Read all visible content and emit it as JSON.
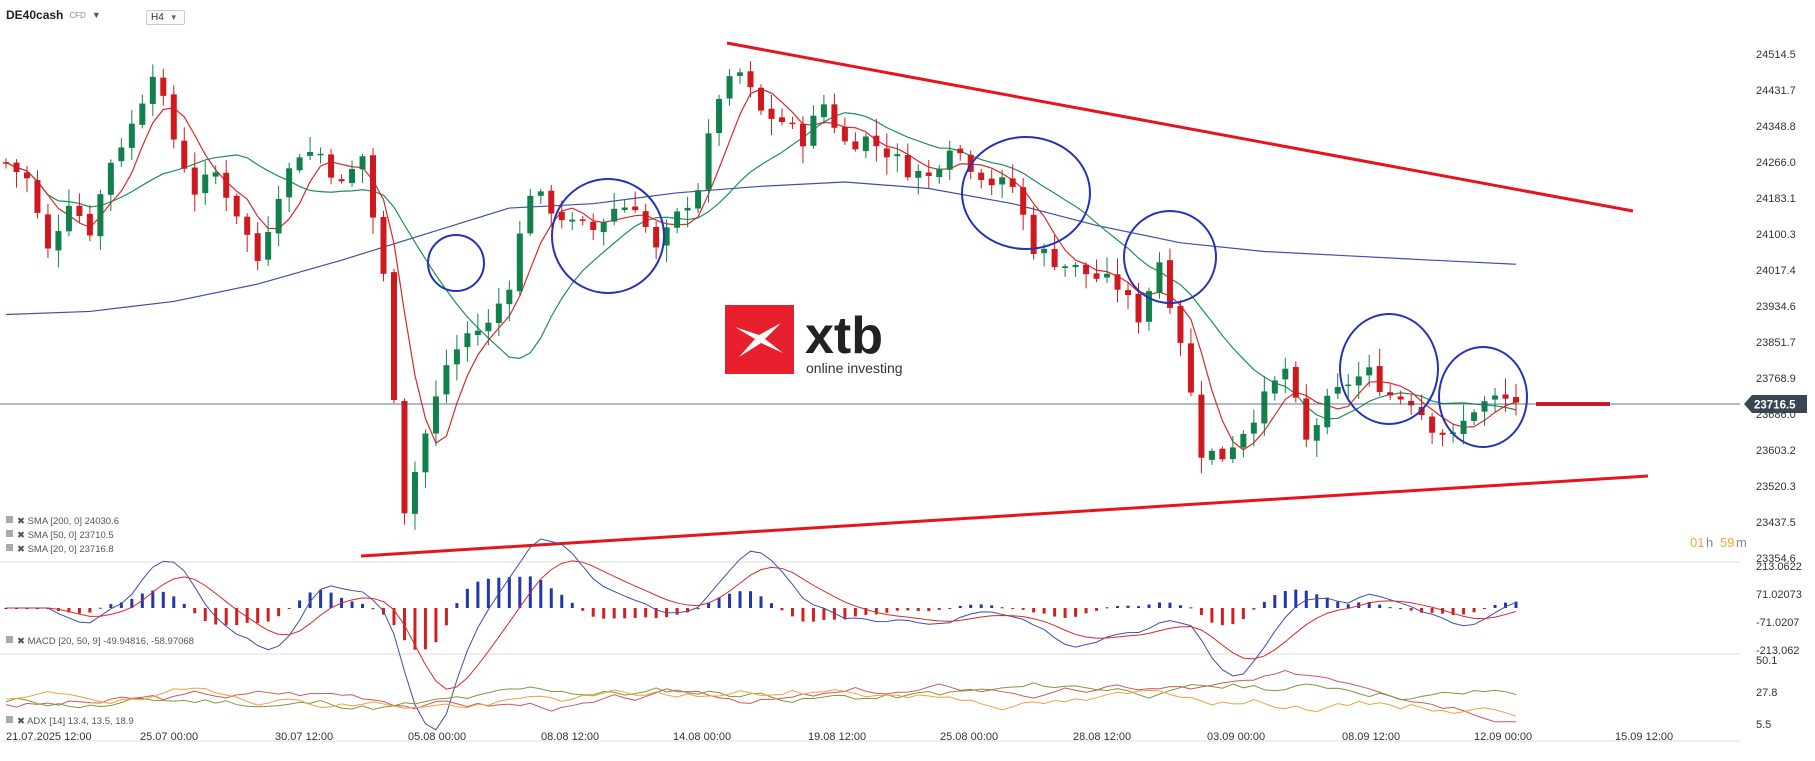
{
  "header": {
    "symbol": "DE40cash",
    "symbol_tag": "CFD",
    "timeframe": "H4"
  },
  "logo": {
    "brand": "xtb",
    "tagline": "online investing",
    "color": "#e8202d"
  },
  "countdown": {
    "hours": "01",
    "h_unit": "h",
    "minutes": "59",
    "m_unit": "m"
  },
  "colors": {
    "bull": "#12804a",
    "bear": "#d0181f",
    "sma200": "#3f4fa8",
    "sma50": "#1f8f5b",
    "sma20": "#d82a2a",
    "trendline": "#e8141b",
    "circles": "#2432b8",
    "macd_hist_pos": "#2336a8",
    "macd_hist_neg": "#d21f1f",
    "adx": "#d05a5a",
    "plus_di": "#7f9a3a",
    "minus_di": "#f0a040"
  },
  "chart_data": [
    {
      "type": "candlestick",
      "panel": "price",
      "symbol": "DE40cash",
      "timeframe": "H4",
      "y_ticks": [
        "24514.5",
        "24431.7",
        "24348.8",
        "24266.0",
        "24183.1",
        "24100.3",
        "24017.4",
        "23934.6",
        "23851.7",
        "23768.9",
        "23686.0",
        "23603.2",
        "23520.3",
        "23437.5",
        "23354.6"
      ],
      "ylim": [
        23354.6,
        24514.5
      ],
      "last_price": "23716.5",
      "x_ticks": [
        "21.07.2025  12:00",
        "25.07  00:00",
        "30.07  12:00",
        "05.08  00:00",
        "08.08  12:00",
        "14.08  00:00",
        "19.08  12:00",
        "25.08  00:00",
        "28.08  12:00",
        "03.09  00:00",
        "08.09  12:00",
        "12.09  00:00",
        "15.09  12:00"
      ],
      "close_path": [
        [
          0,
          24265
        ],
        [
          10,
          24225
        ],
        [
          20,
          24060
        ],
        [
          30,
          24180
        ],
        [
          40,
          24110
        ],
        [
          50,
          24270
        ],
        [
          60,
          24350
        ],
        [
          70,
          24480
        ],
        [
          80,
          24320
        ],
        [
          90,
          24200
        ],
        [
          100,
          24240
        ],
        [
          110,
          24150
        ],
        [
          120,
          24040
        ],
        [
          130,
          24200
        ],
        [
          140,
          24290
        ],
        [
          150,
          24285
        ],
        [
          160,
          24210
        ],
        [
          170,
          24280
        ],
        [
          180,
          24000
        ],
        [
          190,
          23470
        ],
        [
          200,
          23640
        ],
        [
          210,
          23800
        ],
        [
          220,
          23870
        ],
        [
          230,
          23890
        ],
        [
          240,
          23990
        ],
        [
          250,
          24200
        ],
        [
          260,
          24160
        ],
        [
          270,
          24120
        ],
        [
          280,
          24110
        ],
        [
          290,
          24160
        ],
        [
          300,
          24170
        ],
        [
          310,
          24060
        ],
        [
          320,
          24140
        ],
        [
          330,
          24210
        ],
        [
          340,
          24420
        ],
        [
          350,
          24470
        ],
        [
          360,
          24380
        ],
        [
          370,
          24360
        ],
        [
          380,
          24320
        ],
        [
          390,
          24400
        ],
        [
          400,
          24310
        ],
        [
          410,
          24320
        ],
        [
          420,
          24290
        ],
        [
          430,
          24250
        ],
        [
          440,
          24230
        ],
        [
          450,
          24310
        ],
        [
          460,
          24260
        ],
        [
          470,
          24220
        ],
        [
          480,
          24210
        ],
        [
          490,
          24070
        ],
        [
          500,
          24040
        ],
        [
          510,
          24020
        ],
        [
          520,
          24000
        ],
        [
          530,
          23980
        ],
        [
          540,
          23910
        ],
        [
          550,
          24040
        ],
        [
          560,
          23860
        ],
        [
          570,
          23600
        ],
        [
          580,
          23590
        ],
        [
          590,
          23650
        ],
        [
          600,
          23720
        ],
        [
          610,
          23790
        ],
        [
          620,
          23620
        ],
        [
          630,
          23710
        ],
        [
          640,
          23760
        ],
        [
          650,
          23780
        ],
        [
          660,
          23730
        ],
        [
          670,
          23720
        ],
        [
          680,
          23660
        ],
        [
          690,
          23630
        ],
        [
          700,
          23700
        ],
        [
          710,
          23720
        ],
        [
          720,
          23716.5
        ]
      ],
      "n_candles": 145,
      "ma_lines": [
        {
          "name": "SMA [200, 0]",
          "value": "24030.6",
          "color": "#3f4fa8"
        },
        {
          "name": "SMA [50, 0]",
          "value": "23710.5",
          "color": "#1f8f5b"
        },
        {
          "name": "SMA [20, 0]",
          "value": "23716.8",
          "color": "#d82a2a"
        }
      ],
      "sma200_path": [
        [
          0,
          23915
        ],
        [
          40,
          23922
        ],
        [
          80,
          23945
        ],
        [
          120,
          23985
        ],
        [
          160,
          24040
        ],
        [
          200,
          24100
        ],
        [
          240,
          24160
        ],
        [
          280,
          24170
        ],
        [
          320,
          24195
        ],
        [
          360,
          24210
        ],
        [
          400,
          24220
        ],
        [
          440,
          24205
        ],
        [
          480,
          24170
        ],
        [
          520,
          24120
        ],
        [
          560,
          24080
        ],
        [
          600,
          24060
        ],
        [
          640,
          24050
        ],
        [
          680,
          24040
        ],
        [
          720,
          24030.6
        ]
      ]
    },
    {
      "type": "line",
      "panel": "macd",
      "label": "MACD [20, 50, 9]",
      "values": [
        "-49.94816",
        "-58.97068"
      ],
      "y_ticks": [
        "213.0622",
        "71.02073",
        "-71.0207",
        "-213.062"
      ],
      "ylim": [
        -213.062,
        213.0622
      ]
    },
    {
      "type": "line",
      "panel": "adx",
      "label": "ADX [14]",
      "values": [
        "13.4",
        "13.5",
        "18.9"
      ],
      "y_ticks": [
        "50.1",
        "27.8",
        "5.5"
      ],
      "ylim": [
        5.5,
        50.1
      ]
    }
  ]
}
